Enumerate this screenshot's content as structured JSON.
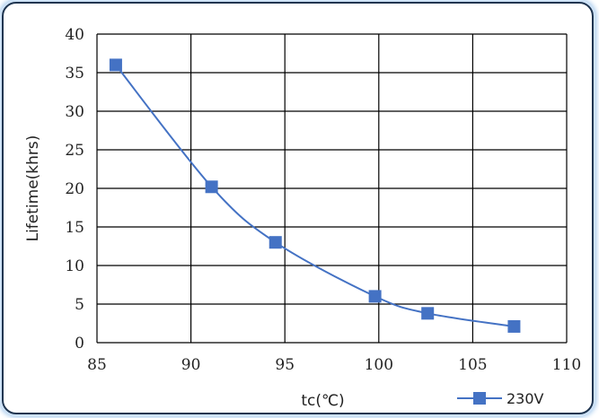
{
  "chart_data": {
    "type": "scatter",
    "xlabel": "tc(℃)",
    "ylabel": "Lifetime(khrs)",
    "xlim": [
      85,
      110
    ],
    "ylim": [
      0,
      40
    ],
    "xticks": [
      85,
      90,
      95,
      100,
      105,
      110
    ],
    "yticks": [
      0,
      5,
      10,
      15,
      20,
      25,
      30,
      35,
      40
    ],
    "grid": true,
    "legend_position": "bottom-right",
    "series": [
      {
        "name": "230V",
        "color": "#4472c4",
        "marker": "square",
        "smooth_line": true,
        "x": [
          86,
          91.1,
          94.5,
          99.8,
          102.6,
          107.2
        ],
        "y": [
          36,
          20.2,
          13,
          6,
          3.8,
          2.1
        ]
      }
    ]
  }
}
